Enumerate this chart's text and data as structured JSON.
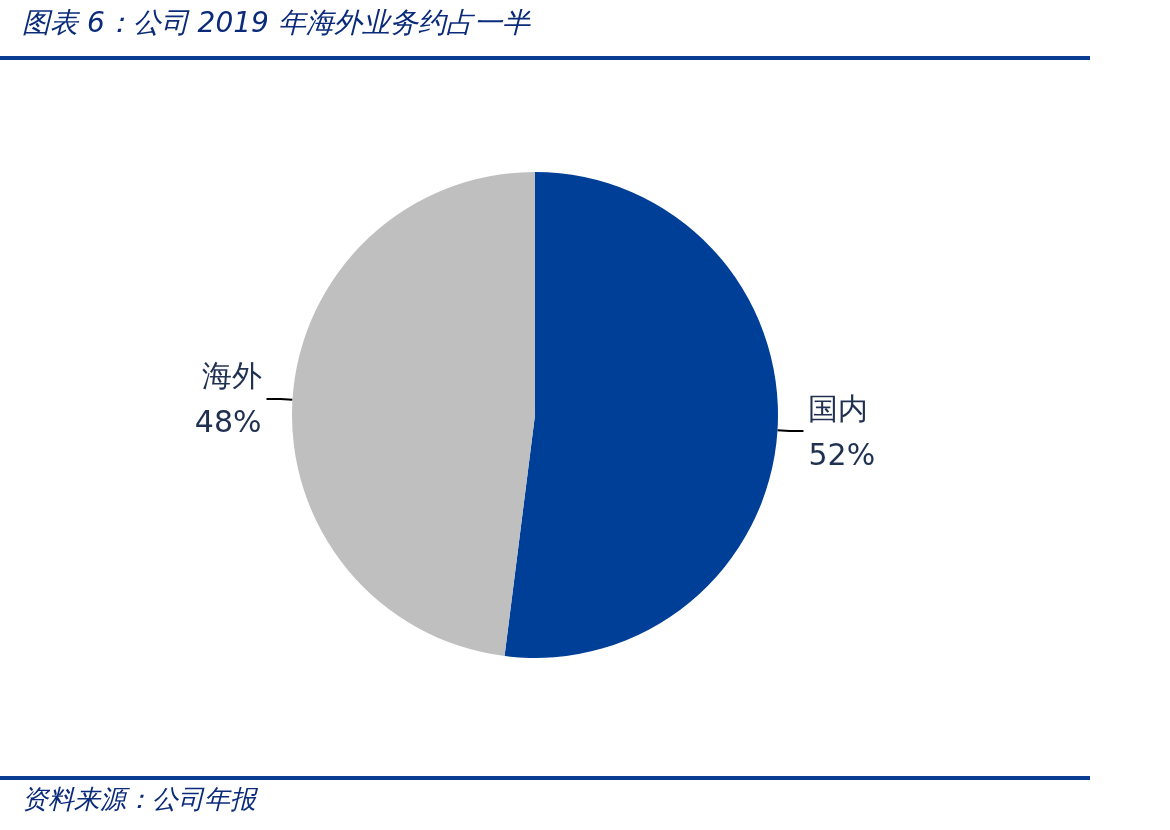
{
  "chart_data": {
    "type": "pie",
    "title": "图表 6：公司 2019 年海外业务约占一半",
    "categories": [
      "国内",
      "海外"
    ],
    "values": [
      52,
      48
    ],
    "value_labels": [
      "52%",
      "48%"
    ],
    "colors": [
      "#003f98",
      "#bfbfbf"
    ],
    "annotations": [
      "资料来源：公司年报"
    ]
  }
}
